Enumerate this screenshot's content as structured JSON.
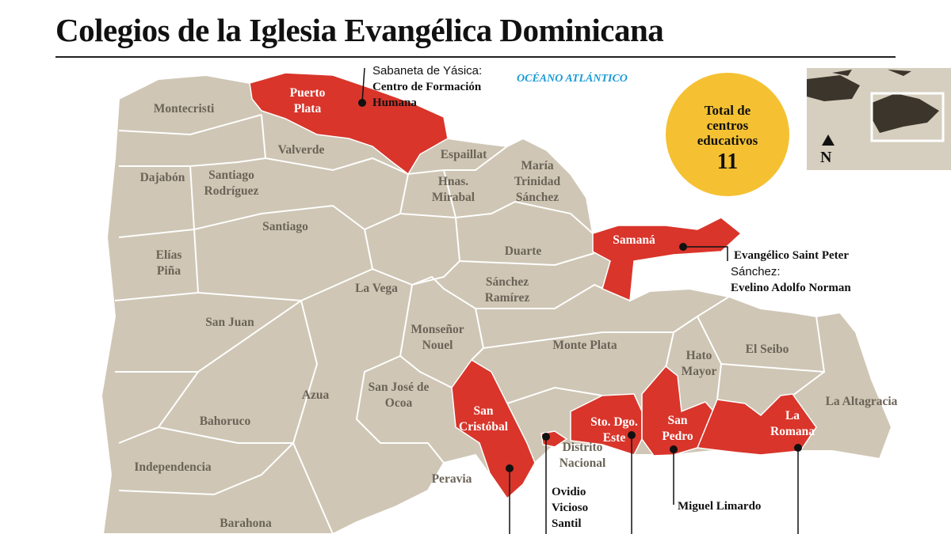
{
  "title": "Colegios de la Iglesia Evangélica Dominicana",
  "ocean": "OCÉANO ATLÁNTICO",
  "total": {
    "label": "Total de centros educativos",
    "value": "11"
  },
  "compass": "N",
  "provinces": [
    {
      "name": "Montecristi",
      "highlighted": false
    },
    {
      "name": "Puerto Plata",
      "highlighted": true
    },
    {
      "name": "Valverde",
      "highlighted": false
    },
    {
      "name": "Dajabón",
      "highlighted": false
    },
    {
      "name": "Santiago Rodríguez",
      "highlighted": false
    },
    {
      "name": "Santiago",
      "highlighted": false
    },
    {
      "name": "Espaillat",
      "highlighted": false
    },
    {
      "name": "Hnas. Mirabal",
      "highlighted": false
    },
    {
      "name": "María Trinidad Sánchez",
      "highlighted": false
    },
    {
      "name": "Elías Piña",
      "highlighted": false
    },
    {
      "name": "Duarte",
      "highlighted": false
    },
    {
      "name": "Samaná",
      "highlighted": true
    },
    {
      "name": "La Vega",
      "highlighted": false
    },
    {
      "name": "Sánchez Ramírez",
      "highlighted": false
    },
    {
      "name": "San Juan",
      "highlighted": false
    },
    {
      "name": "Monseñor Nouel",
      "highlighted": false
    },
    {
      "name": "Monte Plata",
      "highlighted": false
    },
    {
      "name": "Hato Mayor",
      "highlighted": false
    },
    {
      "name": "El Seibo",
      "highlighted": false
    },
    {
      "name": "Azua",
      "highlighted": false
    },
    {
      "name": "San José de Ocoa",
      "highlighted": false
    },
    {
      "name": "San Cristóbal",
      "highlighted": true
    },
    {
      "name": "Sto. Dgo. Este",
      "highlighted": true
    },
    {
      "name": "San Pedro",
      "highlighted": true
    },
    {
      "name": "La Romana",
      "highlighted": true
    },
    {
      "name": "La Altagracia",
      "highlighted": false
    },
    {
      "name": "Bahoruco",
      "highlighted": false
    },
    {
      "name": "Distrito Nacional",
      "highlighted": false
    },
    {
      "name": "Independencia",
      "highlighted": false
    },
    {
      "name": "Peravia",
      "highlighted": false
    },
    {
      "name": "Barahona",
      "highlighted": false
    }
  ],
  "annotations": [
    {
      "place": "Sabaneta de Yásica:",
      "school": "Centro de Formación Humana"
    },
    {
      "school": "Evangélico Saint Peter"
    },
    {
      "place": "Sánchez:",
      "school": "Evelino Adolfo Norman"
    },
    {
      "school": "Ovidio Vicioso Santil"
    },
    {
      "school": "Miguel Limardo"
    }
  ]
}
